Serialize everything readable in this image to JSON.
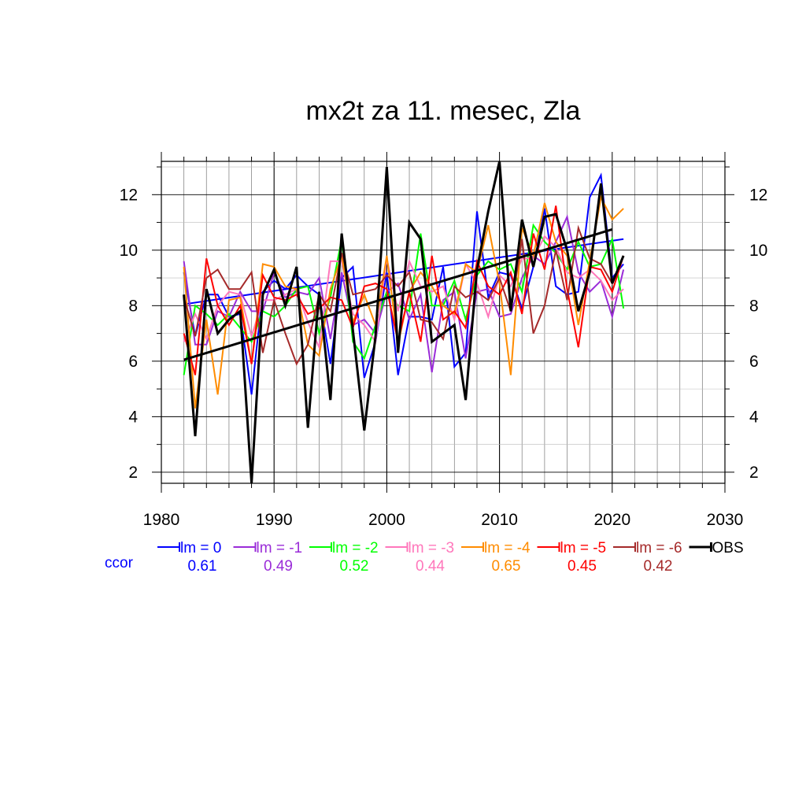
{
  "chart_data": {
    "type": "line",
    "title": "mx2t za 11. mesec, Zla",
    "xlabel": "",
    "ylabel": "",
    "xlim": [
      1980,
      2030
    ],
    "ylim": [
      1.6,
      13.2
    ],
    "x_ticks": [
      1980,
      1990,
      2000,
      2010,
      2020,
      2030
    ],
    "y_ticks": [
      2,
      4,
      6,
      8,
      10,
      12
    ],
    "grid": true,
    "legend_position": "below",
    "ccor_label": "ccor",
    "x": [
      1982,
      1983,
      1984,
      1985,
      1986,
      1987,
      1988,
      1989,
      1990,
      1991,
      1992,
      1993,
      1994,
      1995,
      1996,
      1997,
      1998,
      1999,
      2000,
      2001,
      2002,
      2003,
      2004,
      2005,
      2006,
      2007,
      2008,
      2009,
      2010,
      2011,
      2012,
      2013,
      2014,
      2015,
      2016,
      2017,
      2018,
      2019,
      2020,
      2021
    ],
    "series": [
      {
        "name": "lm = 0",
        "color": "#0000ff",
        "ccor": "0.61",
        "values": [
          9.2,
          6.9,
          8.4,
          8.4,
          7.6,
          7.7,
          4.8,
          8.5,
          8.9,
          8.6,
          9.1,
          8.7,
          8.4,
          5.9,
          9.0,
          9.4,
          5.4,
          6.7,
          9.2,
          5.5,
          7.6,
          7.6,
          7.5,
          9.4,
          5.8,
          6.3,
          11.4,
          8.3,
          9.2,
          9.1,
          7.9,
          9.4,
          11.5,
          8.7,
          8.4,
          8.5,
          11.9,
          12.7,
          9.0,
          9.5
        ],
        "trend": [
          8.05,
          10.4
        ]
      },
      {
        "name": "lm = -1",
        "color": "#9a2cd8",
        "ccor": "0.49",
        "values": [
          9.6,
          6.6,
          6.6,
          7.8,
          7.6,
          8.5,
          7.8,
          7.8,
          9.2,
          8.3,
          8.5,
          8.4,
          9.0,
          6.8,
          9.2,
          7.3,
          7.5,
          7.0,
          8.5,
          8.8,
          7.5,
          8.4,
          5.6,
          8.2,
          8.5,
          6.1,
          8.5,
          8.6,
          7.6,
          7.7,
          9.0,
          9.8,
          9.5,
          10.3,
          11.2,
          9.2,
          8.5,
          8.9,
          7.6,
          9.3
        ]
      },
      {
        "name": "lm = -2",
        "color": "#00ff00",
        "ccor": "0.52",
        "values": [
          5.5,
          8.0,
          7.7,
          7.3,
          7.7,
          7.2,
          6.7,
          7.8,
          7.6,
          8.0,
          8.6,
          8.7,
          7.0,
          8.3,
          10.4,
          6.7,
          6.1,
          7.3,
          8.5,
          8.0,
          7.8,
          10.6,
          8.0,
          8.0,
          8.9,
          7.5,
          9.1,
          9.6,
          9.3,
          9.5,
          8.5,
          10.9,
          10.3,
          9.9,
          9.3,
          10.3,
          9.4,
          9.5,
          10.4,
          7.9
        ]
      },
      {
        "name": "lm = -3",
        "color": "#ff77bb",
        "ccor": "0.44",
        "values": [
          6.7,
          7.7,
          6.8,
          8.0,
          8.5,
          8.4,
          6.9,
          8.2,
          8.2,
          8.4,
          8.6,
          7.4,
          6.5,
          9.6,
          9.6,
          7.7,
          7.3,
          6.7,
          9.7,
          7.8,
          9.6,
          8.7,
          8.5,
          8.7,
          7.5,
          9.5,
          8.8,
          7.6,
          9.1,
          8.7,
          9.7,
          9.7,
          10.5,
          10.1,
          9.2,
          9.0,
          9.3,
          8.9,
          8.2,
          8.6
        ]
      },
      {
        "name": "lm = -4",
        "color": "#ff8c00",
        "ccor": "0.65",
        "values": [
          9.4,
          4.3,
          7.5,
          4.8,
          8.2,
          8.3,
          5.9,
          9.5,
          9.4,
          8.7,
          8.6,
          6.6,
          6.2,
          8.6,
          9.8,
          7.4,
          8.4,
          7.3,
          9.8,
          6.6,
          8.5,
          9.2,
          8.7,
          8.0,
          7.7,
          9.5,
          9.2,
          10.9,
          8.8,
          5.5,
          10.8,
          9.8,
          11.7,
          10.3,
          9.8,
          7.3,
          9.6,
          11.9,
          11.1,
          11.5
        ]
      },
      {
        "name": "lm = -5",
        "color": "#ff0000",
        "ccor": "0.45",
        "values": [
          7.0,
          5.5,
          9.7,
          8.0,
          7.3,
          8.0,
          5.9,
          9.1,
          8.3,
          8.2,
          8.4,
          7.7,
          7.9,
          8.3,
          8.2,
          7.2,
          8.7,
          8.8,
          8.6,
          6.7,
          8.5,
          6.7,
          9.8,
          7.5,
          7.8,
          7.2,
          9.6,
          8.7,
          8.4,
          9.2,
          7.7,
          10.6,
          9.3,
          11.6,
          8.6,
          6.5,
          9.4,
          9.3,
          8.5,
          9.8
        ]
      },
      {
        "name": "lm = -6",
        "color": "#a52a2a",
        "ccor": "0.42",
        "values": [
          8.3,
          6.9,
          9.0,
          9.3,
          8.6,
          8.6,
          9.2,
          6.3,
          8.2,
          7.0,
          5.9,
          6.6,
          8.4,
          7.8,
          9.9,
          8.4,
          8.5,
          8.6,
          9.1,
          8.7,
          9.2,
          7.5,
          7.4,
          6.8,
          8.7,
          8.3,
          8.5,
          8.2,
          9.0,
          7.8,
          10.4,
          7.0,
          8.0,
          10.0,
          8.2,
          10.8,
          9.7,
          9.5,
          8.8,
          9.8
        ]
      },
      {
        "name": "OBS",
        "color": "#000000",
        "ccor": "",
        "values": [
          8.4,
          3.3,
          8.6,
          7.0,
          7.5,
          7.8,
          1.6,
          8.4,
          9.3,
          8.0,
          9.4,
          3.6,
          8.5,
          4.6,
          10.6,
          7.1,
          3.5,
          6.9,
          13.0,
          6.3,
          11.0,
          10.4,
          6.7,
          7.0,
          7.3,
          4.6,
          9.3,
          11.4,
          13.2,
          7.8,
          11.1,
          9.4,
          11.2,
          11.3,
          10.0,
          7.8,
          9.2,
          12.4,
          8.8,
          9.8
        ],
        "trend": [
          6.05,
          10.75
        ]
      }
    ]
  }
}
